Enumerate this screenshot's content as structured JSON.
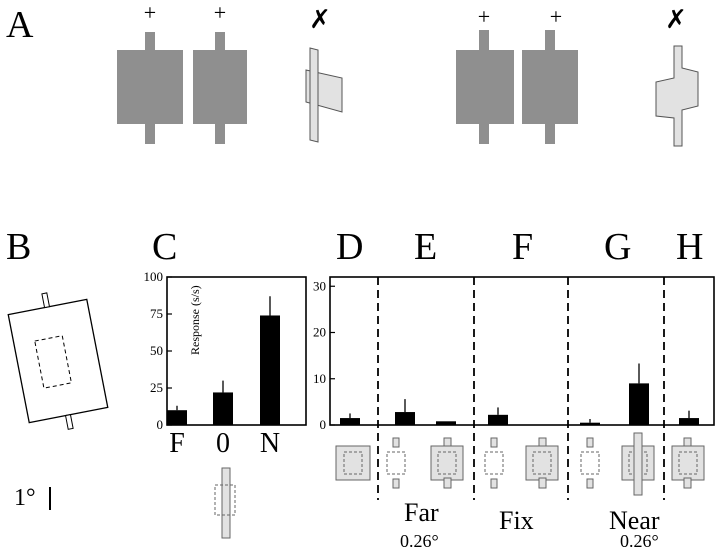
{
  "panel_labels": {
    "a": "A",
    "b": "B",
    "c": "C",
    "d": "D",
    "e": "E",
    "f": "F",
    "g": "G",
    "h": "H"
  },
  "panel_a_marks": [
    "+",
    "+",
    "✗",
    "+",
    "+",
    "✗"
  ],
  "scale_bar_label": "1°",
  "colors": {
    "stimulus_dark": "#8f8f8f",
    "stimulus_light": "#e2e2e2",
    "bar": "#000000"
  },
  "chart_data": [
    {
      "type": "bar",
      "categories": [
        "F",
        "0",
        "N"
      ],
      "values": [
        10,
        22,
        74
      ],
      "errors": [
        3,
        8,
        13
      ],
      "ylabel": "Response (s/s)",
      "ylim": [
        0,
        100
      ],
      "yticks": [
        0,
        25,
        50,
        75,
        100
      ]
    },
    {
      "type": "bar",
      "sections": [
        "D",
        "E",
        "F",
        "G",
        "H"
      ],
      "values": [
        1.5,
        2.8,
        0.8,
        2.2,
        0.0,
        0.5,
        9.0,
        1.5
      ],
      "errors": [
        1.0,
        2.8,
        0.0,
        1.6,
        0.0,
        0.8,
        4.3,
        1.6
      ],
      "ylim": [
        0,
        32
      ],
      "yticks": [
        0,
        10,
        20,
        30
      ],
      "condition_labels": {
        "far": "Far",
        "far_disparity": "0.26°",
        "fix": "Fix",
        "near": "Near",
        "near_disparity": "0.26°"
      }
    }
  ]
}
